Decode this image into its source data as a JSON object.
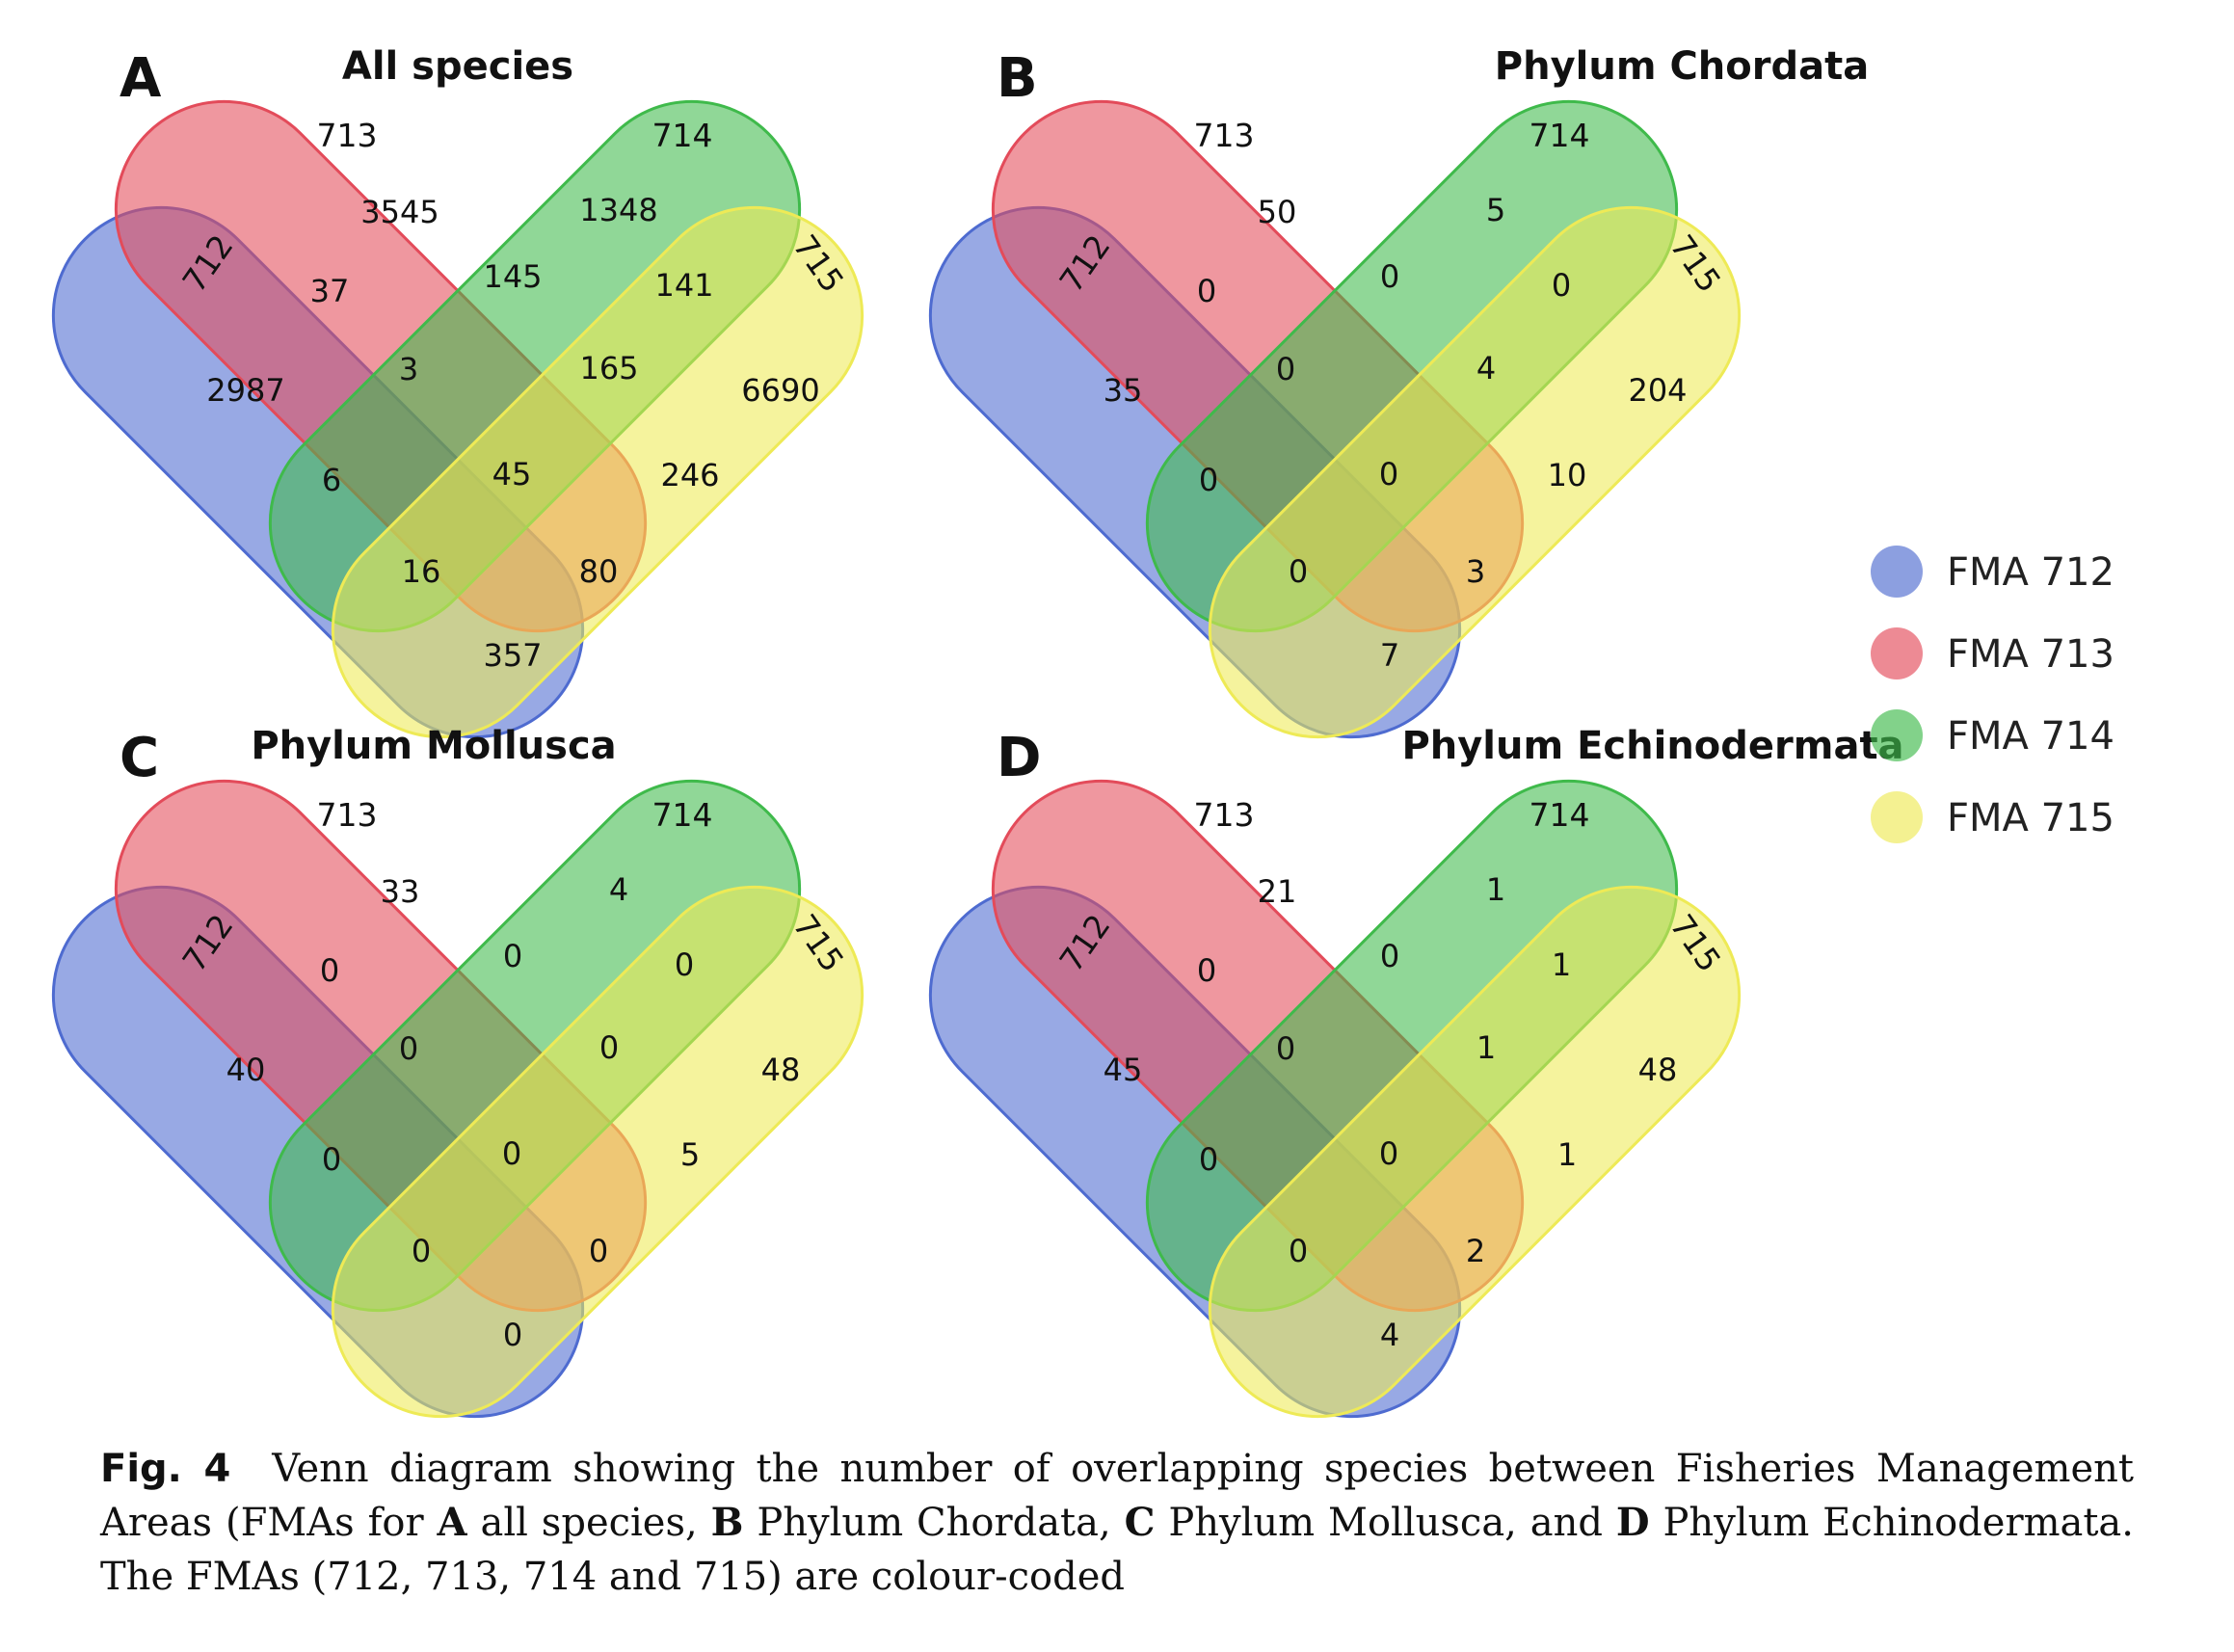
{
  "sets": [
    {
      "name": "712",
      "color": "#4e6bd0"
    },
    {
      "name": "713",
      "color": "#e34b5a"
    },
    {
      "name": "714",
      "color": "#3fba4b"
    },
    {
      "name": "715",
      "color": "#eeea56"
    }
  ],
  "region_order": [
    "712",
    "713",
    "714",
    "715",
    "712&713",
    "713&714",
    "714&715",
    "712&713&714",
    "713&714&715",
    "712&714",
    "713&715",
    "712&713&714&715",
    "712&714&715",
    "712&713&715",
    "712&715"
  ],
  "panels": [
    {
      "letter": "A",
      "title": "All species",
      "values": [
        "2987",
        "3545",
        "1348",
        "6690",
        "37",
        "145",
        "141",
        "3",
        "165",
        "6",
        "246",
        "45",
        "16",
        "80",
        "357"
      ]
    },
    {
      "letter": "B",
      "title": "Phylum Chordata",
      "values": [
        "35",
        "50",
        "5",
        "204",
        "0",
        "0",
        "0",
        "0",
        "4",
        "0",
        "10",
        "0",
        "0",
        "3",
        "7"
      ]
    },
    {
      "letter": "C",
      "title": "Phylum Mollusca",
      "values": [
        "40",
        "33",
        "4",
        "48",
        "0",
        "0",
        "0",
        "0",
        "0",
        "0",
        "5",
        "0",
        "0",
        "0",
        "0"
      ]
    },
    {
      "letter": "D",
      "title": "Phylum Echinodermata",
      "values": [
        "45",
        "21",
        "1",
        "48",
        "0",
        "0",
        "1",
        "0",
        "1",
        "0",
        "1",
        "0",
        "0",
        "2",
        "4"
      ]
    }
  ],
  "legend": [
    "FMA 712",
    "FMA 713",
    "FMA 714",
    "FMA 715"
  ],
  "caption": {
    "fig_label": "Fig. 4",
    "parts": [
      {
        "text": "Venn diagram showing the number of overlapping species between Fisheries Management Areas (FMAs for ",
        "bold": false
      },
      {
        "text": "A",
        "bold": true
      },
      {
        "text": " all species, ",
        "bold": false
      },
      {
        "text": "B",
        "bold": true
      },
      {
        "text": " Phylum Chordata, ",
        "bold": false
      },
      {
        "text": "C",
        "bold": true
      },
      {
        "text": " Phylum Mollusca, and ",
        "bold": false
      },
      {
        "text": "D",
        "bold": true
      },
      {
        "text": " Phylum Echinodermata. The FMAs (712, 713, 714 and 715) are colour-coded",
        "bold": false
      }
    ]
  }
}
